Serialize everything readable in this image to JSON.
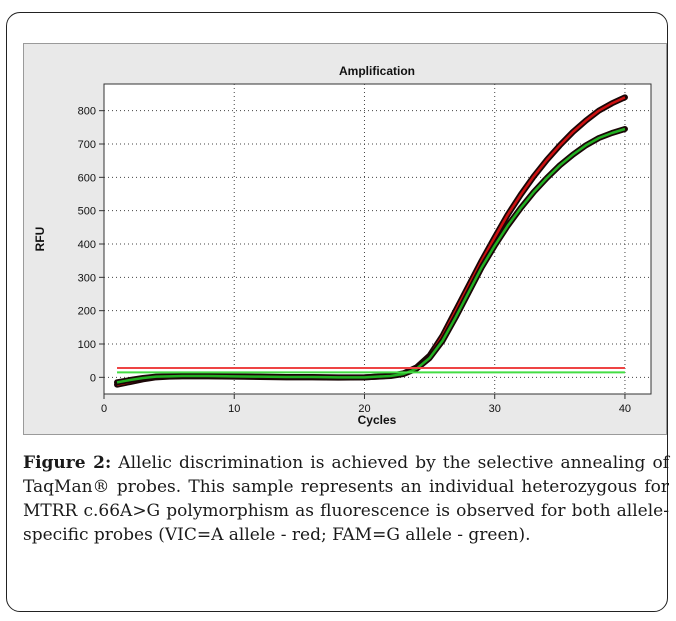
{
  "chart_data": {
    "type": "line",
    "title": "Amplification",
    "xlabel": "Cycles",
    "ylabel": "RFU",
    "xlim": [
      0,
      42
    ],
    "ylim": [
      -50,
      880
    ],
    "x_ticks": [
      0,
      10,
      20,
      30,
      40
    ],
    "y_ticks": [
      0,
      100,
      200,
      300,
      400,
      500,
      600,
      700,
      800
    ],
    "grid": true,
    "legend": "none",
    "series": [
      {
        "color": "#cc1111",
        "x": [
          1,
          2,
          3,
          4,
          5,
          6,
          8,
          10,
          12,
          14,
          16,
          18,
          20,
          21,
          22,
          23,
          24,
          25,
          26,
          27,
          28,
          29,
          30,
          31,
          32,
          33,
          34,
          35,
          36,
          37,
          38,
          39,
          40
        ],
        "values": [
          -22,
          -14,
          -6,
          0,
          2,
          3,
          3,
          2,
          1,
          0,
          0,
          -1,
          0,
          2,
          5,
          12,
          30,
          65,
          125,
          200,
          275,
          350,
          420,
          488,
          548,
          603,
          652,
          696,
          736,
          770,
          800,
          822,
          840
        ]
      },
      {
        "color": "#22b022",
        "x": [
          1,
          2,
          3,
          4,
          5,
          6,
          8,
          10,
          12,
          14,
          16,
          18,
          20,
          21,
          22,
          23,
          24,
          25,
          26,
          27,
          28,
          29,
          30,
          31,
          32,
          33,
          34,
          35,
          36,
          37,
          38,
          39,
          40
        ],
        "values": [
          -15,
          -8,
          -2,
          2,
          3,
          4,
          4,
          3,
          2,
          1,
          1,
          0,
          0,
          2,
          4,
          10,
          26,
          58,
          110,
          180,
          255,
          330,
          395,
          455,
          508,
          556,
          598,
          636,
          668,
          696,
          718,
          733,
          745
        ]
      },
      {
        "color": "#ee4444",
        "x": [
          1,
          40
        ],
        "values": [
          28,
          28
        ]
      },
      {
        "color": "#44dd44",
        "x": [
          1,
          40
        ],
        "values": [
          15,
          15
        ]
      }
    ]
  },
  "caption": {
    "label": "Figure 2:",
    "text": " Allelic discrimination is achieved by the selective annealing of TaqMan® probes. This sample represents an individual heterozygous for MTRR c.66A>G polymorphism as fluorescence is observed for both allele-specific probes (VIC=A allele - red; FAM=G allele - green)."
  }
}
